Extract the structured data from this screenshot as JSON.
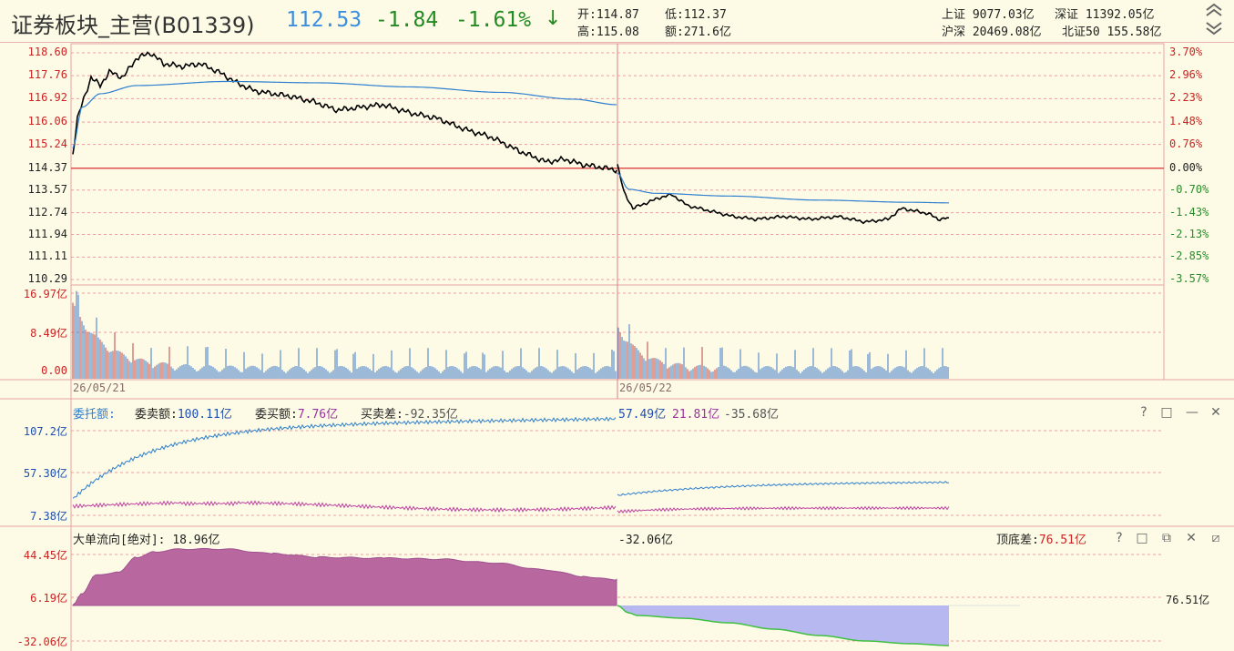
{
  "header": {
    "title": "证券板块_主营(B01339)",
    "price": "112.53",
    "change": "-1.84",
    "change_pct": "-1.61%",
    "arrow": "↓",
    "open_label": "开:",
    "open": "114.87",
    "low_label": "低:",
    "low": "112.37",
    "high_label": "高:",
    "high": "115.08",
    "amount_label": "额:",
    "amount": "271.6亿"
  },
  "indices": [
    {
      "label": "上证",
      "value": "9077.03亿"
    },
    {
      "label": "深证",
      "value": "11392.05亿"
    },
    {
      "label": "沪深",
      "value": "20469.08亿"
    },
    {
      "label": "北证50",
      "value": "155.58亿"
    }
  ],
  "price_panel": {
    "left_ticks": [
      "118.60",
      "117.76",
      "116.92",
      "116.06",
      "115.24",
      "114.37",
      "113.57",
      "112.74",
      "111.94",
      "111.11",
      "110.29"
    ],
    "right_ticks": [
      "3.70%",
      "2.96%",
      "2.23%",
      "1.48%",
      "0.76%",
      "0.00%",
      "-0.70%",
      "-1.43%",
      "-2.13%",
      "-2.85%",
      "-3.57%"
    ],
    "prev_close": 114.37
  },
  "volume_panel": {
    "ticks": [
      "16.97亿",
      "8.49亿",
      "0.00"
    ],
    "dates": [
      "26/05/21",
      "26/05/22"
    ]
  },
  "order_panel": {
    "title": "委托额:",
    "sell_label": "委卖额:",
    "sell_value": "100.11亿",
    "buy_label": "委买额:",
    "buy_value": "7.76亿",
    "diff_label": "买卖差:",
    "diff_value": "-92.35亿",
    "day2_sell": "57.49亿",
    "day2_buy": "21.81亿",
    "day2_diff": "-35.68亿",
    "ticks": [
      "107.2亿",
      "57.30亿",
      "7.38亿"
    ]
  },
  "flow_panel": {
    "title": "大单流向[绝对]:",
    "day1_value": "18.96亿",
    "day2_value": "-32.06亿",
    "topbottom_label": "顶底差:",
    "topbottom_value": "76.51亿",
    "right_cut_label": "76.51亿",
    "ticks": [
      "44.45亿",
      "6.19亿",
      "-32.06亿"
    ]
  },
  "panel_buttons": [
    "?",
    "□",
    "—",
    "✕"
  ],
  "flow_buttons": [
    "?",
    "□",
    "⧉",
    "✕",
    "⧄"
  ],
  "colors": {
    "background": "#fdfbe6",
    "grid": "#e8a0a0",
    "price_line": "#000000",
    "avg_line": "#2f7fd0",
    "volume_bar": "#3a78c8",
    "volume_bar_down": "#c04040",
    "sell_line": "#2f7fd0",
    "buy_line": "#c040a0",
    "flow_positive_fill": "#b8689f",
    "flow_negative_fill": "#b8b8f0",
    "flow_negative_line": "#40c040"
  }
}
